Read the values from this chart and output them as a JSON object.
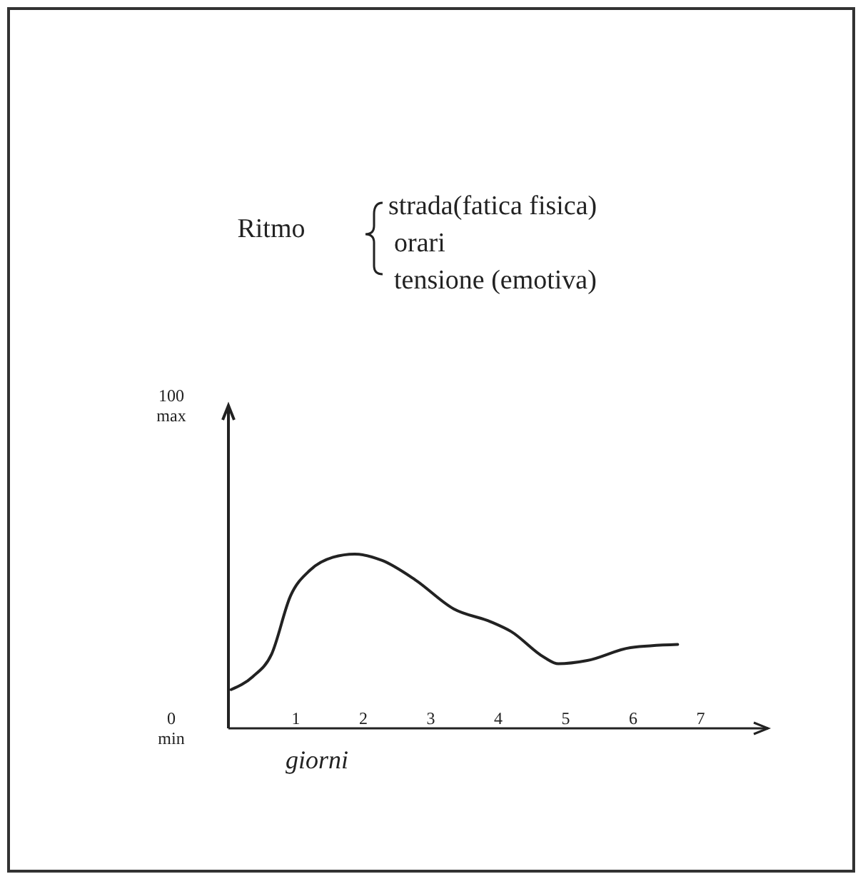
{
  "chart_data": {
    "type": "line",
    "title": "Ritmo",
    "annotations": [
      "strada(fatica fisica)",
      "orari",
      "tensione (emotiva)"
    ],
    "xlabel": "giorni",
    "x": [
      0.04,
      0.36,
      0.64,
      0.92,
      1.21,
      1.55,
      1.87,
      2.28,
      2.77,
      3.34,
      3.89,
      4.19,
      4.68,
      4.89,
      5.32,
      5.96,
      6.66
    ],
    "values": [
      12,
      16,
      23,
      41,
      49,
      53,
      54,
      52,
      46,
      37,
      33,
      30,
      22,
      20,
      21,
      25,
      26
    ],
    "color": "#222222",
    "xlim": [
      0,
      8
    ],
    "ylim": [
      0,
      100
    ],
    "xticks": [
      1,
      2,
      3,
      4,
      5,
      6,
      7
    ],
    "yticks": [
      {
        "value": 0,
        "label": "0\nmin"
      },
      {
        "value": 100,
        "label": "100\nmax"
      }
    ],
    "grid": false,
    "marker": "none",
    "line_style": "solid"
  }
}
